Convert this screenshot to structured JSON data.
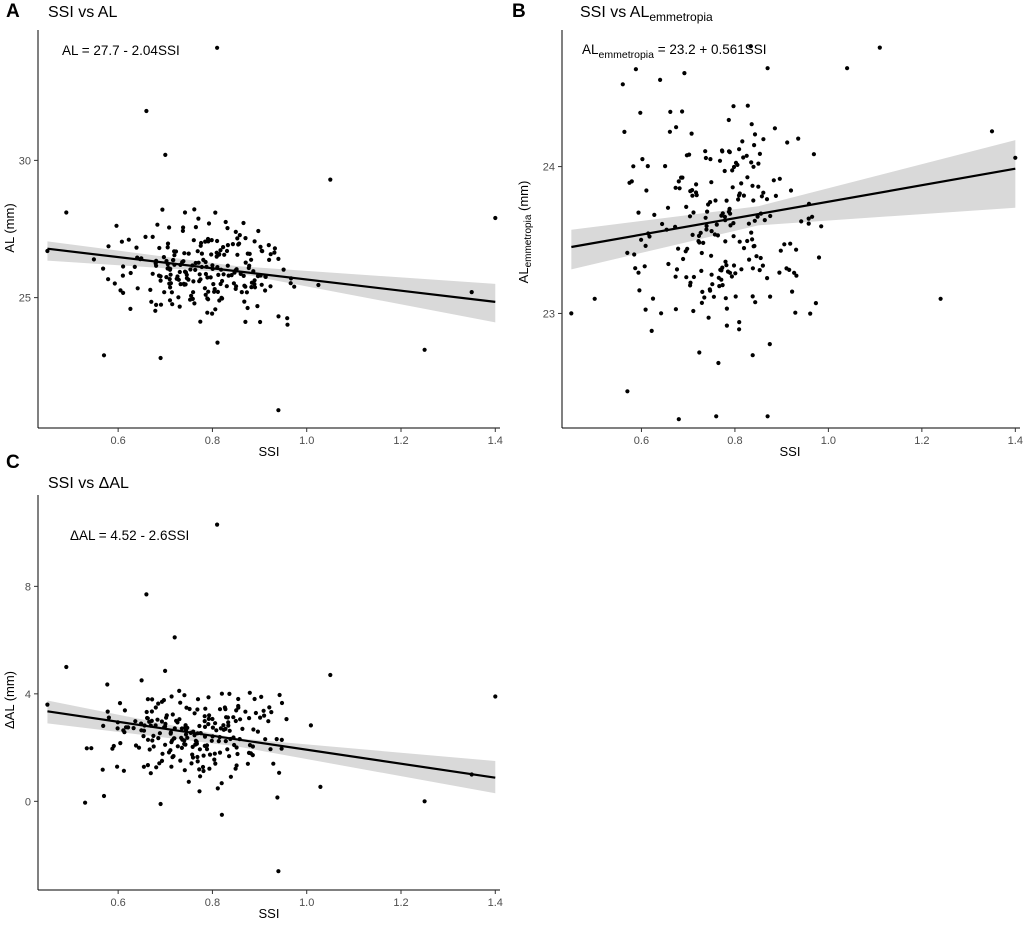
{
  "chart_data": [
    {
      "id": "A",
      "type": "scatter",
      "panel_label": "A",
      "title": "SSI vs AL",
      "equation": "AL = 27.7 - 2.04SSI",
      "xlabel": "SSI",
      "ylabel": "AL (mm)",
      "xlim": [
        0.43,
        1.41
      ],
      "ylim": [
        20.25,
        34.75
      ],
      "xticks": [
        0.6,
        0.8,
        1.0,
        1.2,
        1.4
      ],
      "xtick_labels": [
        "0.6",
        "0.8",
        "1.0",
        "1.2",
        "1.4"
      ],
      "yticks": [
        25,
        30
      ],
      "ytick_labels": [
        "25",
        "30"
      ],
      "fit": {
        "intercept": 27.7,
        "slope": -2.04,
        "x_range": [
          0.45,
          1.4
        ]
      },
      "ci": [
        [
          0.45,
          26.35,
          27.05
        ],
        [
          0.85,
          25.9,
          26.15
        ],
        [
          1.4,
          24.1,
          25.5
        ]
      ],
      "outliers": [
        [
          0.81,
          34.1
        ],
        [
          0.66,
          31.8
        ],
        [
          0.7,
          30.2
        ],
        [
          1.05,
          29.3
        ],
        [
          0.94,
          20.9
        ],
        [
          1.4,
          27.9
        ],
        [
          1.25,
          23.1
        ],
        [
          0.57,
          22.9
        ],
        [
          0.69,
          22.8
        ],
        [
          1.35,
          25.2
        ],
        [
          0.45,
          26.7
        ],
        [
          0.49,
          28.1
        ]
      ],
      "seed": 11,
      "n_random": 228,
      "random_y_center": 25.9,
      "random_y_spread": 1.15
    },
    {
      "id": "B",
      "type": "scatter",
      "panel_label": "B",
      "title": "SSI vs AL",
      "title_sub": "emmetropia",
      "equation_main": "AL",
      "equation_sub": "emmetropia",
      "equation_rest": " = 23.2 + 0.561SSI",
      "xlabel": "SSI",
      "ylabel_main": "AL",
      "ylabel_sub": "emmetropia",
      "ylabel_rest": " (mm)",
      "xlim": [
        0.43,
        1.41
      ],
      "ylim": [
        22.22,
        24.93
      ],
      "xticks": [
        0.6,
        0.8,
        1.0,
        1.2,
        1.4
      ],
      "xtick_labels": [
        "0.6",
        "0.8",
        "1.0",
        "1.2",
        "1.4"
      ],
      "yticks": [
        23,
        24
      ],
      "ytick_labels": [
        "23",
        "24"
      ],
      "fit": {
        "intercept": 23.2,
        "slope": 0.561,
        "x_range": [
          0.45,
          1.4
        ]
      },
      "ci": [
        [
          0.45,
          23.3,
          23.57
        ],
        [
          0.85,
          23.6,
          23.73
        ],
        [
          1.4,
          23.72,
          24.18
        ]
      ],
      "outliers": [
        [
          1.11,
          24.81
        ],
        [
          0.87,
          24.67
        ],
        [
          1.04,
          24.67
        ],
        [
          0.64,
          24.59
        ],
        [
          0.56,
          24.56
        ],
        [
          0.68,
          22.28
        ],
        [
          0.76,
          22.3
        ],
        [
          0.87,
          22.3
        ],
        [
          0.57,
          22.47
        ],
        [
          1.4,
          24.06
        ],
        [
          1.35,
          24.24
        ],
        [
          1.24,
          23.1
        ],
        [
          0.45,
          23.0
        ],
        [
          0.5,
          23.1
        ]
      ],
      "seed": 23,
      "n_random": 226,
      "random_y_center": 23.62,
      "random_y_spread": 0.5
    },
    {
      "id": "C",
      "type": "scatter",
      "panel_label": "C",
      "title": "SSI vs ΔAL",
      "equation": "ΔAL = 4.52 - 2.6SSI",
      "xlabel": "SSI",
      "ylabel": "ΔAL (mm)",
      "xlim": [
        0.43,
        1.41
      ],
      "ylim": [
        -3.3,
        11.4
      ],
      "xticks": [
        0.6,
        0.8,
        1.0,
        1.2,
        1.4
      ],
      "xtick_labels": [
        "0.6",
        "0.8",
        "1.0",
        "1.2",
        "1.4"
      ],
      "yticks": [
        0,
        4,
        8
      ],
      "ytick_labels": [
        "0",
        "4",
        "8"
      ],
      "fit": {
        "intercept": 4.52,
        "slope": -2.6,
        "x_range": [
          0.45,
          1.4
        ]
      },
      "ci": [
        [
          0.45,
          2.9,
          3.75
        ],
        [
          0.85,
          2.05,
          2.35
        ],
        [
          1.4,
          0.3,
          1.5
        ]
      ],
      "outliers": [
        [
          0.81,
          10.3
        ],
        [
          0.66,
          7.7
        ],
        [
          0.72,
          6.1
        ],
        [
          0.49,
          5.0
        ],
        [
          0.94,
          -2.6
        ],
        [
          1.4,
          3.9
        ],
        [
          1.25,
          0.0
        ],
        [
          0.82,
          -0.5
        ],
        [
          0.69,
          -0.1
        ],
        [
          0.53,
          -0.05
        ],
        [
          0.57,
          0.2
        ],
        [
          1.35,
          1.0
        ],
        [
          0.45,
          3.6
        ],
        [
          1.05,
          4.7
        ]
      ],
      "seed": 37,
      "n_random": 228,
      "random_y_center": 2.35,
      "random_y_spread": 1.1
    }
  ]
}
